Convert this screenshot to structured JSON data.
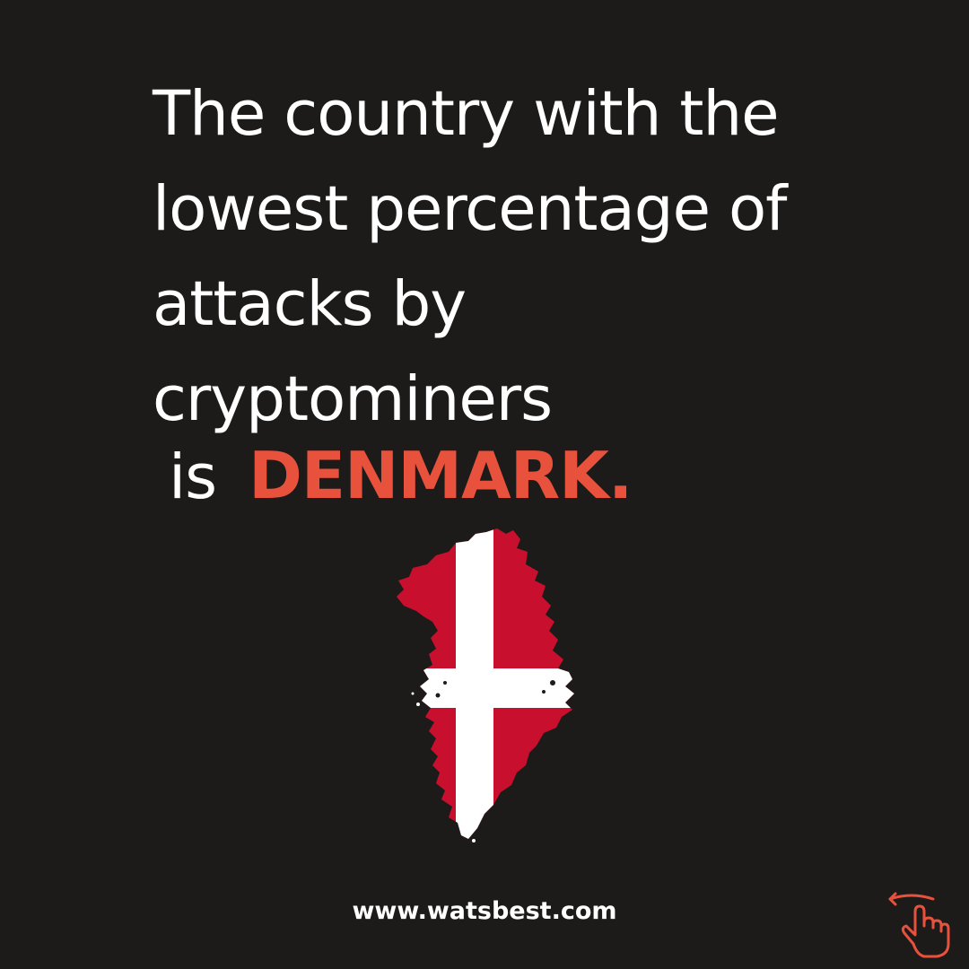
{
  "headline": {
    "lines": [
      "The country with the",
      "lowest percentage of",
      "attacks by",
      "cryptominers"
    ],
    "is_word": "is",
    "country": "DENMARK."
  },
  "map": {
    "icon": "greenland-map-icon",
    "flag_red": "#c8102e",
    "flag_white": "#ffffff"
  },
  "footer": {
    "website": "www.watsbest.com"
  },
  "swipe": {
    "icon": "swipe-hand-icon",
    "color": "#e8523c"
  },
  "colors": {
    "background": "#1d1b1a",
    "accent": "#e8523c",
    "text": "#ffffff"
  }
}
